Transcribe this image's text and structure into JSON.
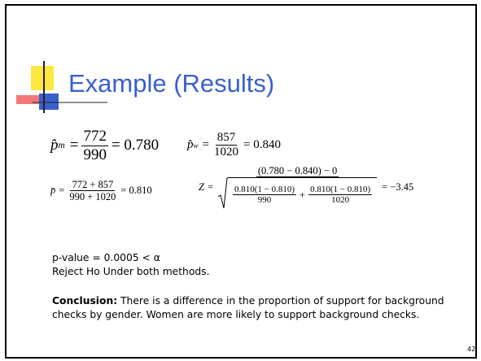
{
  "title": "Example (Results)",
  "equations": {
    "p_m": {
      "var": "p̂",
      "sub": "m",
      "eq": "=",
      "num": "772",
      "den": "990",
      "result": "= 0.780"
    },
    "p_w": {
      "var": "p̂",
      "sub": "w",
      "eq": "=",
      "num": "857",
      "den": "1020",
      "result": "= 0.840"
    },
    "p_pooled": {
      "var": "p̄",
      "eq": "=",
      "num": "772 + 857",
      "den": "990 + 1020",
      "result": "= 0.810"
    },
    "z": {
      "var": "Z",
      "eq": "=",
      "num": "(0.780 − 0.840) − 0",
      "den_left_num": "0.810(1 − 0.810)",
      "den_left_den": "990",
      "plus": "+",
      "den_right_num": "0.810(1 − 0.810)",
      "den_right_den": "1020",
      "result": "= −3.45"
    }
  },
  "body": {
    "p_value": "p-value = 0.0005 < α",
    "reject": "Reject Ho Under both methods.",
    "conclusion_label": "Conclusion:",
    "conclusion_text": " There is a difference in the proportion of support for background checks by gender. Women are more likely to support background checks."
  },
  "page_number": "42"
}
